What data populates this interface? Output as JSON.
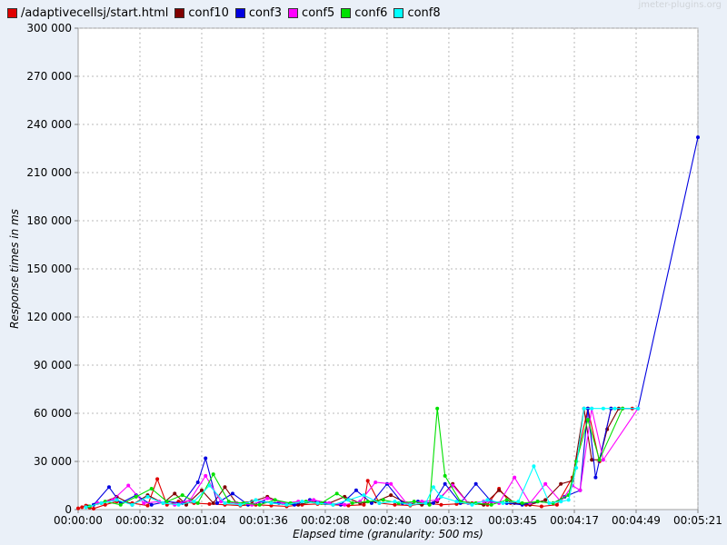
{
  "watermark": "jmeter-plugins.org",
  "chart_data": {
    "type": "line",
    "title": "",
    "xlabel": "Elapsed time (granularity: 500 ms)",
    "ylabel": "Response times in ms",
    "xlim_seconds": [
      0,
      321
    ],
    "ylim": [
      0,
      300000
    ],
    "y_ticks": [
      0,
      30000,
      60000,
      90000,
      120000,
      150000,
      180000,
      210000,
      240000,
      270000,
      300000
    ],
    "y_tick_labels": [
      "0",
      "30 000",
      "60 000",
      "90 000",
      "120 000",
      "150 000",
      "180 000",
      "210 000",
      "240 000",
      "270 000",
      "300 000"
    ],
    "x_ticks_seconds": [
      0,
      32,
      64,
      96,
      128,
      160,
      192,
      225,
      257,
      289,
      321
    ],
    "x_tick_labels": [
      "00:00:00",
      "00:00:32",
      "00:01:04",
      "00:01:36",
      "00:02:08",
      "00:02:40",
      "00:03:12",
      "00:03:45",
      "00:04:17",
      "00:04:49",
      "00:05:21"
    ],
    "grid": true,
    "legend_position": "top-left",
    "series": [
      {
        "name": "/adaptivecellsj/start.html",
        "color": "#e00000",
        "x": [
          0,
          2,
          4,
          6,
          8,
          14,
          20,
          28,
          36,
          41,
          46,
          52,
          60,
          68,
          76,
          84,
          92,
          100,
          108,
          116,
          124,
          132,
          140,
          148,
          150,
          156,
          164,
          172,
          180,
          188,
          196,
          204,
          212,
          218,
          224,
          232,
          240,
          248,
          256,
          264,
          270,
          276,
          282,
          287
        ],
        "y": [
          800,
          1500,
          2500,
          1200,
          600,
          3000,
          5000,
          4000,
          2500,
          19000,
          3000,
          5000,
          4000,
          3500,
          3000,
          2500,
          3000,
          2500,
          2000,
          3000,
          3500,
          3000,
          2500,
          3000,
          18000,
          4000,
          3000,
          2500,
          4000,
          3000,
          3500,
          4000,
          3000,
          13000,
          4000,
          3000,
          2000,
          3000,
          20000,
          63000,
          30000,
          63000,
          63000,
          63000
        ]
      },
      {
        "name": "conf10",
        "color": "#800000",
        "x": [
          5,
          12,
          20,
          28,
          36,
          44,
          50,
          56,
          64,
          70,
          76,
          82,
          90,
          98,
          106,
          114,
          122,
          130,
          138,
          146,
          154,
          162,
          170,
          178,
          186,
          194,
          202,
          210,
          218,
          226,
          234,
          242,
          250,
          256,
          262,
          266,
          270,
          274,
          280
        ],
        "y": [
          2000,
          4000,
          8000,
          3000,
          9000,
          4000,
          10000,
          3000,
          12000,
          4000,
          14000,
          4000,
          5000,
          8000,
          4000,
          3000,
          5000,
          4000,
          8000,
          4000,
          5000,
          9000,
          4000,
          3000,
          5000,
          16000,
          4000,
          3000,
          12000,
          4000,
          3000,
          6000,
          16000,
          18000,
          63000,
          31000,
          31000,
          50000,
          63000
        ]
      },
      {
        "name": "conf3",
        "color": "#0000e0",
        "x": [
          8,
          16,
          22,
          30,
          38,
          46,
          54,
          62,
          66,
          72,
          80,
          88,
          96,
          104,
          112,
          120,
          128,
          136,
          144,
          152,
          160,
          168,
          176,
          184,
          190,
          198,
          206,
          214,
          222,
          230,
          238,
          246,
          252,
          260,
          264,
          268,
          276,
          290,
          321
        ],
        "y": [
          3000,
          14000,
          4000,
          9000,
          3000,
          5000,
          4000,
          17000,
          32000,
          4000,
          10000,
          3000,
          5000,
          4000,
          3000,
          6000,
          4000,
          3000,
          12000,
          4000,
          16000,
          4000,
          5000,
          4000,
          16000,
          4000,
          16000,
          5000,
          4000,
          3000,
          5000,
          4000,
          8000,
          12000,
          63000,
          20000,
          63000,
          63000,
          232000
        ]
      },
      {
        "name": "conf5",
        "color": "#ff00ff",
        "x": [
          10,
          18,
          26,
          34,
          42,
          50,
          58,
          66,
          74,
          82,
          90,
          98,
          106,
          114,
          122,
          130,
          138,
          146,
          154,
          162,
          170,
          178,
          186,
          194,
          202,
          210,
          218,
          226,
          234,
          242,
          250,
          256,
          260,
          266,
          272,
          290
        ],
        "y": [
          4000,
          6000,
          15000,
          4000,
          5000,
          3000,
          6000,
          21000,
          5000,
          4000,
          3000,
          7000,
          4000,
          5000,
          6000,
          4000,
          3000,
          5000,
          17000,
          16000,
          4000,
          5000,
          6000,
          15000,
          4000,
          5000,
          4000,
          20000,
          4000,
          16000,
          5000,
          15000,
          12000,
          63000,
          31000,
          63000
        ]
      },
      {
        "name": "conf6",
        "color": "#00e000",
        "x": [
          6,
          14,
          22,
          30,
          38,
          46,
          54,
          62,
          70,
          78,
          86,
          94,
          102,
          110,
          118,
          126,
          134,
          142,
          150,
          158,
          166,
          174,
          182,
          186,
          190,
          198,
          206,
          214,
          222,
          230,
          238,
          246,
          254,
          258,
          264,
          270,
          282
        ],
        "y": [
          2000,
          5000,
          3000,
          8000,
          13000,
          5000,
          9000,
          4000,
          22000,
          5000,
          4000,
          3000,
          6000,
          4000,
          5000,
          4000,
          10000,
          4000,
          5000,
          6000,
          4000,
          5000,
          3000,
          63000,
          21000,
          5000,
          4000,
          3000,
          6000,
          4000,
          5000,
          4000,
          9000,
          30000,
          56000,
          31000,
          63000
        ]
      },
      {
        "name": "conf8",
        "color": "#00ffff",
        "x": [
          4,
          12,
          20,
          28,
          36,
          44,
          52,
          60,
          68,
          76,
          84,
          92,
          100,
          108,
          116,
          124,
          132,
          140,
          148,
          156,
          164,
          172,
          180,
          184,
          188,
          196,
          204,
          212,
          220,
          228,
          236,
          244,
          250,
          254,
          258,
          262,
          266,
          272,
          278,
          290
        ],
        "y": [
          1500,
          4000,
          6000,
          3000,
          8000,
          4000,
          3000,
          5000,
          15000,
          4000,
          3000,
          6000,
          4000,
          3000,
          5000,
          4000,
          3000,
          6000,
          9000,
          4000,
          5000,
          3000,
          4000,
          14000,
          8000,
          5000,
          3000,
          6000,
          4000,
          5000,
          27000,
          4000,
          5000,
          6000,
          26000,
          63000,
          63000,
          63000,
          63000,
          63000
        ]
      }
    ]
  }
}
